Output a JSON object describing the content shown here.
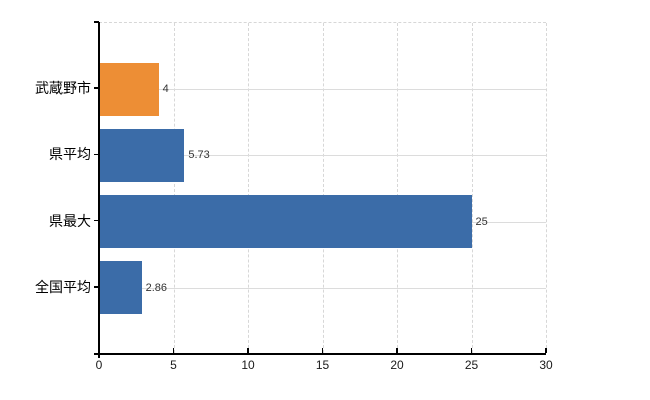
{
  "chart_data": {
    "type": "bar",
    "orientation": "horizontal",
    "title": "",
    "xlabel": "",
    "ylabel": "",
    "categories": [
      "武蔵野市",
      "県平均",
      "県最大",
      "全国平均"
    ],
    "values": [
      4,
      5.73,
      25,
      2.86
    ],
    "value_labels": [
      "4",
      "5.73",
      "25",
      "2.86"
    ],
    "bar_colors": [
      "#ED8E35",
      "#3B6CA8",
      "#3B6CA8",
      "#3B6CA8"
    ],
    "xlim": [
      0,
      30
    ],
    "x_ticks": [
      0,
      5,
      10,
      15,
      20,
      25,
      30
    ],
    "x_tick_labels": [
      "0",
      "5",
      "10",
      "15",
      "20",
      "25",
      "30"
    ],
    "grid": {
      "vertical": "dashed",
      "horizontal": "solid"
    },
    "legend": "none"
  },
  "colors": {
    "background": "#ffffff",
    "axis": "#000000",
    "gridline": "#d7d7d7",
    "value_text": "#333333",
    "tick_text": "#1a1a1a",
    "category_text": "#000000"
  }
}
